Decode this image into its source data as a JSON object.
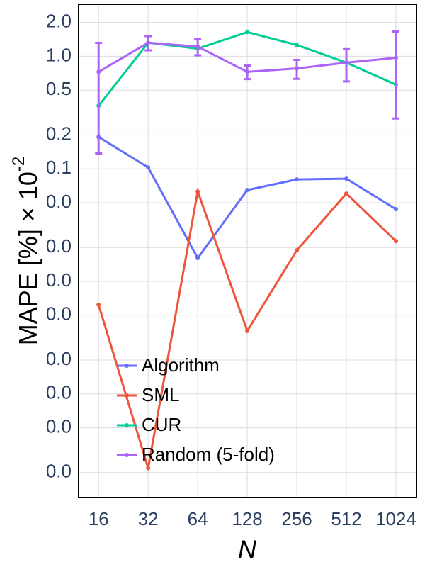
{
  "chart_data": {
    "type": "line",
    "xlabel": "N",
    "ylabel": {
      "text": "MAPE [%] × 10",
      "exponent": "-2"
    },
    "x": [
      16,
      32,
      64,
      128,
      256,
      512,
      1024
    ],
    "xlim": [
      12.1,
      1365
    ],
    "xticks": [
      16,
      32,
      64,
      128,
      256,
      512,
      1024
    ],
    "xscale": "log",
    "ylim": [
      0.00012,
      2.9
    ],
    "yscale": "log",
    "yticks": [
      {
        "value": 2,
        "label": "2.0"
      },
      {
        "value": 1,
        "label": "1.0"
      },
      0.5,
      0.2,
      0.1,
      {
        "value": 0.05,
        "label": "0.0"
      },
      {
        "value": 0.02,
        "label": "0.0"
      },
      {
        "value": 0.01,
        "label": "0.0"
      },
      {
        "value": 0.005,
        "label": "0.0"
      },
      {
        "value": 0.002,
        "label": "0.0"
      },
      {
        "value": 0.001,
        "label": "0.0"
      },
      {
        "value": 0.0005,
        "label": "0.0"
      },
      {
        "value": 0.0002,
        "label": "0.0"
      }
    ],
    "grid": true,
    "legend": "lower left",
    "series": [
      {
        "name": "Algorithm",
        "color": "#636efa",
        "values": [
          0.192,
          0.103,
          0.0161,
          0.0648,
          0.0805,
          0.0817,
          0.0438
        ]
      },
      {
        "name": "SML",
        "color": "#ef553b",
        "values": [
          0.0062,
          0.000219,
          0.063,
          0.00363,
          0.0189,
          0.0603,
          0.0228
        ]
      },
      {
        "name": "CUR",
        "color": "#00cc96",
        "values": [
          0.363,
          1.32,
          1.17,
          1.64,
          1.26,
          0.878,
          0.56
        ]
      },
      {
        "name": "Random (5-fold)",
        "color": "#ab63fa",
        "values": [
          0.727,
          1.32,
          1.22,
          0.727,
          0.78,
          0.878,
          0.97
        ],
        "error": [
          0.59,
          0.19,
          0.2,
          0.1,
          0.15,
          0.28,
          0.69
        ]
      }
    ]
  }
}
